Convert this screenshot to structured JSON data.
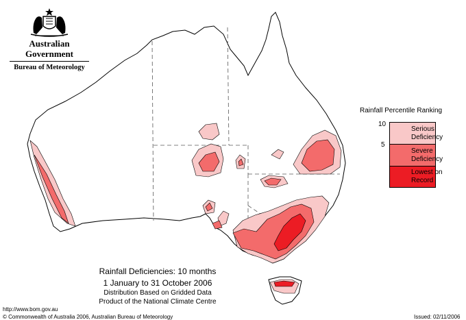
{
  "header": {
    "government_name": "Australian Government",
    "bureau_name": "Bureau of Meteorology",
    "crest_icon": "coat-of-arms-icon"
  },
  "legend": {
    "title": "Rainfall Percentile Ranking",
    "tick_top": "10",
    "tick_mid": "5",
    "categories": [
      {
        "label_line1": "Serious",
        "label_line2": "Deficiency",
        "color": "#f9c8c8"
      },
      {
        "label_line1": "Severe",
        "label_line2": "Deficiency",
        "color": "#f36b6b"
      },
      {
        "label_line1": "Lowest on",
        "label_line2": "Record",
        "color": "#ec1c24"
      }
    ]
  },
  "map_title": {
    "line1": "Rainfall Deficiencies: 10 months",
    "line2": "1 January to 31 October 2006",
    "line3": "Distribution Based on Gridded Data",
    "line4": "Product of the National Climate Centre"
  },
  "footer": {
    "url": "http://www.bom.gov.au",
    "copyright": "© Commonwealth of Australia 2006, Australian Bureau of Meteorology",
    "issued": "Issued: 02/11/2006"
  },
  "colors": {
    "serious": "#f9c8c8",
    "severe": "#f36b6b",
    "lowest": "#ec1c24",
    "coast": "#000000",
    "border": "#555555"
  }
}
